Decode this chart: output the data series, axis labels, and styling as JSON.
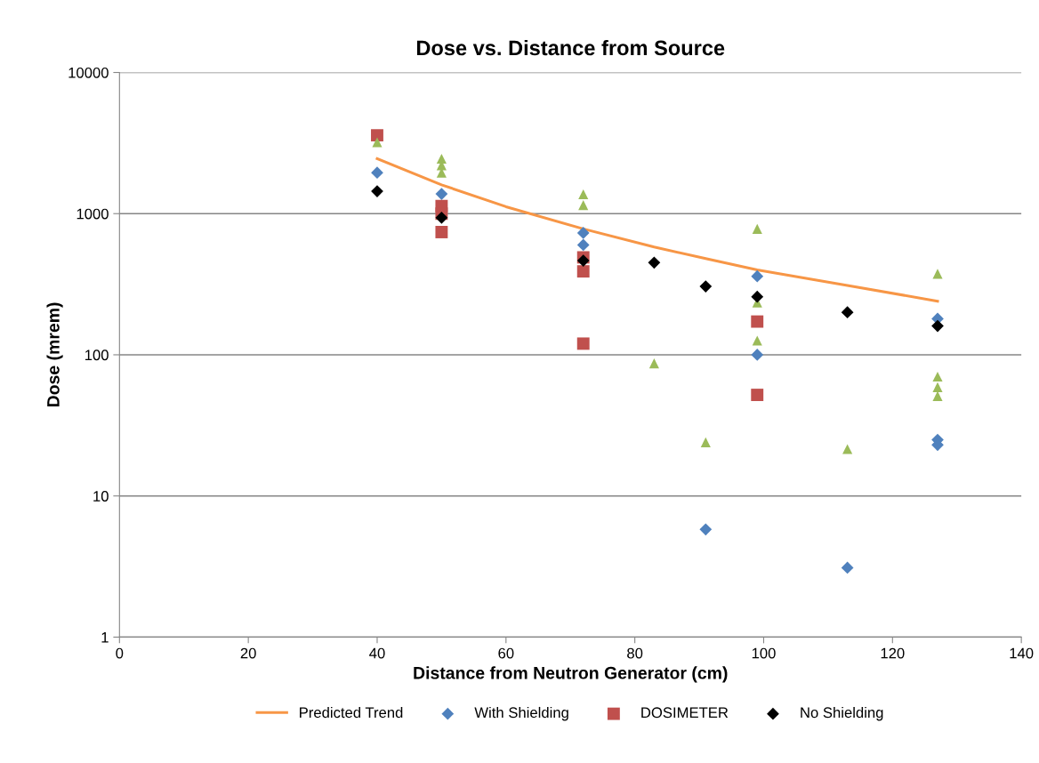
{
  "chart_data": {
    "type": "scatter",
    "title": "Dose vs. Distance from Source",
    "xlabel": "Distance from Neutron Generator (cm)",
    "ylabel": "Dose (mrem)",
    "log": "y",
    "xlim": [
      0,
      140
    ],
    "xticks": [
      0,
      20,
      40,
      60,
      80,
      100,
      120,
      140
    ],
    "ylim": [
      1,
      10000
    ],
    "yticks": [
      1,
      10,
      100,
      1000,
      10000
    ],
    "grid": "y",
    "legend": "bottom",
    "series": [
      {
        "name": "Predicted Trend",
        "type": "line",
        "color": "#f79646",
        "marker": "none",
        "line_style": "solid",
        "x": [
          40,
          50,
          60,
          72,
          83,
          91,
          99,
          113,
          127
        ],
        "values": [
          2450,
          1600,
          1120,
          780,
          580,
          480,
          400,
          310,
          240
        ]
      },
      {
        "name": "With Shielding",
        "color": "#4f81bd",
        "marker": "diamond",
        "x": [
          40,
          50,
          72,
          72,
          99,
          99,
          91,
          113,
          127,
          127,
          127
        ],
        "values": [
          1950,
          1380,
          730,
          600,
          360,
          100,
          5.8,
          3.1,
          180,
          25,
          23
        ]
      },
      {
        "name": "DOSIMETER",
        "color": "#c0504d",
        "marker": "square",
        "x": [
          40,
          50,
          50,
          50,
          72,
          72,
          72,
          99,
          99
        ],
        "values": [
          3590,
          1130,
          1000,
          740,
          490,
          390,
          120,
          172,
          52
        ]
      },
      {
        "color": "#9bbb59",
        "marker": "triangle",
        "x": [
          40,
          50,
          50,
          50,
          72,
          72,
          83,
          91,
          99,
          99,
          99,
          113,
          127,
          127,
          127,
          127
        ],
        "values": [
          3200,
          2450,
          2200,
          1950,
          1370,
          1150,
          87,
          24,
          780,
          235,
          126,
          21.5,
          375,
          70,
          59,
          51
        ]
      },
      {
        "name": "No Shielding",
        "color": "#000000",
        "marker": "diamond",
        "x": [
          40,
          50,
          72,
          83,
          91,
          99,
          113,
          127
        ],
        "values": [
          1440,
          935,
          465,
          450,
          305,
          258,
          200,
          160
        ]
      }
    ]
  }
}
